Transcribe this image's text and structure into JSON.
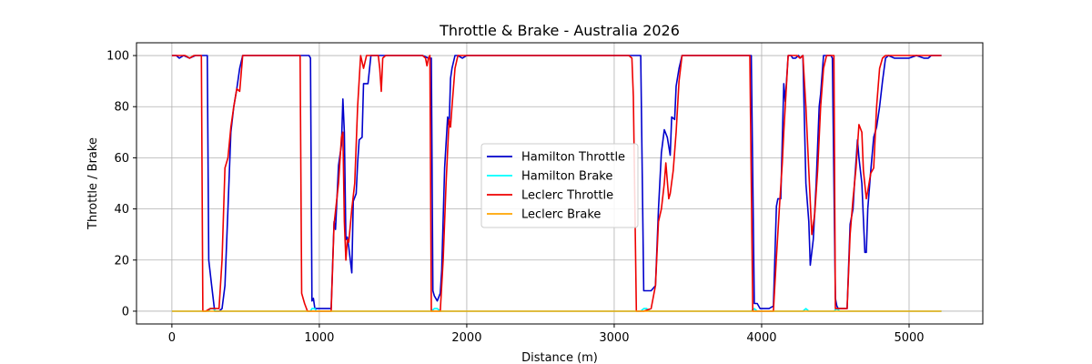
{
  "chart_data": {
    "type": "line",
    "title": "Throttle & Brake - Australia 2026",
    "xlabel": "Distance (m)",
    "ylabel": "Throttle / Brake",
    "xlim": [
      -240,
      5500
    ],
    "ylim": [
      -5,
      105
    ],
    "x_ticks": [
      0,
      1000,
      2000,
      3000,
      4000,
      5000
    ],
    "y_ticks": [
      0,
      20,
      40,
      60,
      80,
      100
    ],
    "grid": true,
    "legend_position": "center",
    "series": [
      {
        "name": "Hamilton Throttle",
        "color": "#0000cc",
        "points": [
          [
            0,
            100
          ],
          [
            30,
            100
          ],
          [
            50,
            99
          ],
          [
            80,
            100
          ],
          [
            120,
            99
          ],
          [
            160,
            100
          ],
          [
            200,
            100
          ],
          [
            230,
            100
          ],
          [
            240,
            100
          ],
          [
            250,
            20
          ],
          [
            270,
            10
          ],
          [
            290,
            0
          ],
          [
            320,
            0
          ],
          [
            340,
            1
          ],
          [
            360,
            10
          ],
          [
            380,
            40
          ],
          [
            400,
            70
          ],
          [
            420,
            80
          ],
          [
            440,
            87
          ],
          [
            460,
            95
          ],
          [
            480,
            100
          ],
          [
            520,
            100
          ],
          [
            600,
            100
          ],
          [
            700,
            100
          ],
          [
            800,
            100
          ],
          [
            900,
            100
          ],
          [
            930,
            100
          ],
          [
            940,
            99
          ],
          [
            950,
            4
          ],
          [
            960,
            5
          ],
          [
            970,
            1
          ],
          [
            1000,
            1
          ],
          [
            1050,
            1
          ],
          [
            1080,
            1
          ],
          [
            1100,
            35
          ],
          [
            1110,
            32
          ],
          [
            1130,
            57
          ],
          [
            1150,
            65
          ],
          [
            1160,
            83
          ],
          [
            1170,
            70
          ],
          [
            1180,
            28
          ],
          [
            1190,
            29
          ],
          [
            1200,
            25
          ],
          [
            1220,
            15
          ],
          [
            1230,
            43
          ],
          [
            1250,
            46
          ],
          [
            1260,
            58
          ],
          [
            1270,
            67
          ],
          [
            1290,
            68
          ],
          [
            1300,
            89
          ],
          [
            1330,
            89
          ],
          [
            1350,
            100
          ],
          [
            1400,
            100
          ],
          [
            1500,
            100
          ],
          [
            1600,
            100
          ],
          [
            1700,
            100
          ],
          [
            1740,
            99
          ],
          [
            1760,
            99
          ],
          [
            1770,
            8
          ],
          [
            1780,
            6
          ],
          [
            1800,
            4
          ],
          [
            1820,
            7
          ],
          [
            1830,
            16
          ],
          [
            1850,
            56
          ],
          [
            1870,
            76
          ],
          [
            1880,
            72
          ],
          [
            1890,
            91
          ],
          [
            1900,
            95
          ],
          [
            1920,
            100
          ],
          [
            1940,
            100
          ],
          [
            1970,
            99
          ],
          [
            2000,
            100
          ],
          [
            2500,
            100
          ],
          [
            3000,
            100
          ],
          [
            3100,
            100
          ],
          [
            3150,
            100
          ],
          [
            3170,
            100
          ],
          [
            3180,
            100
          ],
          [
            3200,
            8
          ],
          [
            3250,
            8
          ],
          [
            3280,
            10
          ],
          [
            3300,
            40
          ],
          [
            3320,
            62
          ],
          [
            3340,
            71
          ],
          [
            3360,
            68
          ],
          [
            3380,
            61
          ],
          [
            3390,
            76
          ],
          [
            3410,
            75
          ],
          [
            3420,
            88
          ],
          [
            3440,
            95
          ],
          [
            3460,
            100
          ],
          [
            3500,
            100
          ],
          [
            3700,
            100
          ],
          [
            3900,
            100
          ],
          [
            3920,
            100
          ],
          [
            3930,
            100
          ],
          [
            3950,
            3
          ],
          [
            3970,
            3
          ],
          [
            3990,
            1
          ],
          [
            4010,
            1
          ],
          [
            4050,
            1
          ],
          [
            4080,
            2
          ],
          [
            4100,
            41
          ],
          [
            4110,
            44
          ],
          [
            4130,
            44
          ],
          [
            4150,
            89
          ],
          [
            4160,
            82
          ],
          [
            4180,
            100
          ],
          [
            4200,
            100
          ],
          [
            4210,
            99
          ],
          [
            4230,
            99
          ],
          [
            4250,
            100
          ],
          [
            4260,
            99
          ],
          [
            4280,
            100
          ],
          [
            4300,
            50
          ],
          [
            4320,
            35
          ],
          [
            4330,
            18
          ],
          [
            4350,
            28
          ],
          [
            4370,
            50
          ],
          [
            4390,
            80
          ],
          [
            4400,
            85
          ],
          [
            4420,
            100
          ],
          [
            4440,
            100
          ],
          [
            4470,
            100
          ],
          [
            4480,
            99
          ],
          [
            4500,
            5
          ],
          [
            4510,
            2
          ],
          [
            4520,
            1
          ],
          [
            4580,
            1
          ],
          [
            4600,
            34
          ],
          [
            4620,
            40
          ],
          [
            4630,
            50
          ],
          [
            4650,
            67
          ],
          [
            4660,
            60
          ],
          [
            4680,
            50
          ],
          [
            4700,
            23
          ],
          [
            4710,
            23
          ],
          [
            4720,
            40
          ],
          [
            4740,
            55
          ],
          [
            4760,
            68
          ],
          [
            4780,
            72
          ],
          [
            4800,
            80
          ],
          [
            4820,
            90
          ],
          [
            4840,
            99
          ],
          [
            4860,
            100
          ],
          [
            4900,
            99
          ],
          [
            5000,
            99
          ],
          [
            5050,
            100
          ],
          [
            5100,
            99
          ],
          [
            5130,
            99
          ],
          [
            5150,
            100
          ],
          [
            5220,
            100
          ]
        ]
      },
      {
        "name": "Hamilton Brake",
        "color": "#00ffff",
        "points": [
          [
            0,
            0
          ],
          [
            240,
            0
          ],
          [
            250,
            0
          ],
          [
            260,
            1
          ],
          [
            280,
            1
          ],
          [
            300,
            0
          ],
          [
            940,
            0
          ],
          [
            950,
            1
          ],
          [
            970,
            1
          ],
          [
            980,
            0
          ],
          [
            1760,
            0
          ],
          [
            1780,
            1
          ],
          [
            1800,
            1
          ],
          [
            1820,
            0
          ],
          [
            3180,
            0
          ],
          [
            3200,
            1
          ],
          [
            3220,
            1
          ],
          [
            3240,
            0
          ],
          [
            3930,
            0
          ],
          [
            3950,
            1
          ],
          [
            3970,
            0
          ],
          [
            4280,
            0
          ],
          [
            4300,
            1
          ],
          [
            4320,
            0
          ],
          [
            4490,
            0
          ],
          [
            4510,
            1
          ],
          [
            4530,
            0
          ],
          [
            5220,
            0
          ]
        ]
      },
      {
        "name": "Leclerc Throttle",
        "color": "#ee0000",
        "points": [
          [
            0,
            100
          ],
          [
            60,
            100
          ],
          [
            90,
            100
          ],
          [
            120,
            99
          ],
          [
            150,
            100
          ],
          [
            180,
            100
          ],
          [
            200,
            100
          ],
          [
            210,
            0
          ],
          [
            230,
            0
          ],
          [
            260,
            1
          ],
          [
            290,
            1
          ],
          [
            320,
            1
          ],
          [
            340,
            20
          ],
          [
            360,
            56
          ],
          [
            380,
            60
          ],
          [
            400,
            72
          ],
          [
            420,
            80
          ],
          [
            440,
            87
          ],
          [
            460,
            86
          ],
          [
            480,
            100
          ],
          [
            520,
            100
          ],
          [
            700,
            100
          ],
          [
            800,
            100
          ],
          [
            850,
            100
          ],
          [
            870,
            100
          ],
          [
            880,
            7
          ],
          [
            900,
            3
          ],
          [
            920,
            0
          ],
          [
            950,
            0
          ],
          [
            1000,
            0
          ],
          [
            1050,
            0
          ],
          [
            1080,
            0
          ],
          [
            1100,
            34
          ],
          [
            1130,
            50
          ],
          [
            1150,
            68
          ],
          [
            1160,
            70
          ],
          [
            1170,
            35
          ],
          [
            1180,
            20
          ],
          [
            1190,
            28
          ],
          [
            1200,
            27
          ],
          [
            1220,
            40
          ],
          [
            1240,
            50
          ],
          [
            1260,
            80
          ],
          [
            1280,
            100
          ],
          [
            1300,
            95
          ],
          [
            1320,
            100
          ],
          [
            1350,
            100
          ],
          [
            1400,
            100
          ],
          [
            1410,
            95
          ],
          [
            1420,
            86
          ],
          [
            1430,
            99
          ],
          [
            1450,
            100
          ],
          [
            1600,
            100
          ],
          [
            1700,
            100
          ],
          [
            1720,
            99
          ],
          [
            1730,
            96
          ],
          [
            1740,
            99
          ],
          [
            1750,
            100
          ],
          [
            1760,
            0
          ],
          [
            1780,
            0
          ],
          [
            1800,
            0
          ],
          [
            1820,
            0
          ],
          [
            1840,
            20
          ],
          [
            1860,
            50
          ],
          [
            1880,
            75
          ],
          [
            1890,
            72
          ],
          [
            1900,
            80
          ],
          [
            1920,
            95
          ],
          [
            1940,
            100
          ],
          [
            1980,
            100
          ],
          [
            2000,
            100
          ],
          [
            2500,
            100
          ],
          [
            3000,
            100
          ],
          [
            3100,
            100
          ],
          [
            3120,
            99
          ],
          [
            3130,
            84
          ],
          [
            3150,
            0
          ],
          [
            3170,
            0
          ],
          [
            3200,
            0
          ],
          [
            3250,
            1
          ],
          [
            3280,
            10
          ],
          [
            3300,
            35
          ],
          [
            3320,
            40
          ],
          [
            3340,
            50
          ],
          [
            3350,
            58
          ],
          [
            3370,
            44
          ],
          [
            3380,
            46
          ],
          [
            3400,
            55
          ],
          [
            3420,
            70
          ],
          [
            3440,
            90
          ],
          [
            3460,
            100
          ],
          [
            3500,
            100
          ],
          [
            3700,
            100
          ],
          [
            3900,
            100
          ],
          [
            3920,
            100
          ],
          [
            3940,
            0
          ],
          [
            3960,
            0
          ],
          [
            4000,
            0
          ],
          [
            4050,
            0
          ],
          [
            4080,
            0
          ],
          [
            4100,
            21
          ],
          [
            4120,
            40
          ],
          [
            4140,
            58
          ],
          [
            4150,
            70
          ],
          [
            4160,
            80
          ],
          [
            4180,
            100
          ],
          [
            4200,
            100
          ],
          [
            4240,
            100
          ],
          [
            4260,
            99
          ],
          [
            4280,
            100
          ],
          [
            4300,
            80
          ],
          [
            4320,
            55
          ],
          [
            4340,
            30
          ],
          [
            4360,
            38
          ],
          [
            4380,
            55
          ],
          [
            4400,
            80
          ],
          [
            4420,
            95
          ],
          [
            4440,
            100
          ],
          [
            4460,
            100
          ],
          [
            4490,
            100
          ],
          [
            4500,
            1
          ],
          [
            4520,
            1
          ],
          [
            4580,
            1
          ],
          [
            4600,
            30
          ],
          [
            4620,
            44
          ],
          [
            4640,
            56
          ],
          [
            4660,
            73
          ],
          [
            4680,
            70
          ],
          [
            4690,
            55
          ],
          [
            4710,
            44
          ],
          [
            4720,
            47
          ],
          [
            4740,
            54
          ],
          [
            4760,
            56
          ],
          [
            4780,
            80
          ],
          [
            4800,
            95
          ],
          [
            4820,
            99
          ],
          [
            4840,
            100
          ],
          [
            4900,
            100
          ],
          [
            5000,
            100
          ],
          [
            5100,
            100
          ],
          [
            5150,
            100
          ],
          [
            5220,
            100
          ]
        ]
      },
      {
        "name": "Leclerc Brake",
        "color": "#ffa500",
        "points": [
          [
            0,
            0
          ],
          [
            1000,
            0
          ],
          [
            2000,
            0
          ],
          [
            3000,
            0
          ],
          [
            4000,
            0
          ],
          [
            5000,
            0
          ],
          [
            5220,
            0
          ]
        ]
      }
    ]
  }
}
